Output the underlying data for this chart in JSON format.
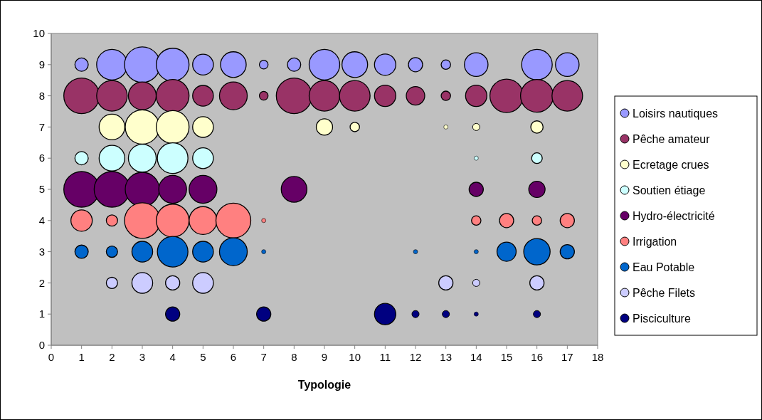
{
  "chart_data": {
    "type": "bubble",
    "xlabel": "Typologie",
    "xlim": [
      0,
      18
    ],
    "xticks": [
      0,
      1,
      2,
      3,
      4,
      5,
      6,
      7,
      8,
      9,
      10,
      11,
      12,
      13,
      14,
      15,
      16,
      17,
      18
    ],
    "ylim": [
      0,
      10
    ],
    "yticks": [
      0,
      1,
      2,
      3,
      4,
      5,
      6,
      7,
      8,
      9,
      10
    ],
    "grid": false,
    "legend": "right",
    "marker": "circle",
    "series": [
      {
        "name": "Loisirs nautiques",
        "color": "#9999ff",
        "x": [
          1,
          2,
          3,
          4,
          5,
          6,
          7,
          8,
          9,
          10,
          11,
          12,
          13,
          14,
          16,
          17
        ],
        "values": [
          9,
          9,
          9,
          9,
          9,
          9,
          9,
          9,
          9,
          9,
          9,
          9,
          9,
          9,
          9,
          9
        ],
        "sizes": [
          0.14,
          0.74,
          1,
          0.85,
          0.34,
          0.52,
          0.06,
          0.14,
          0.74,
          0.52,
          0.36,
          0.16,
          0.07,
          0.44,
          0.74,
          0.44
        ]
      },
      {
        "name": "Pêche amateur",
        "color": "#993366",
        "x": [
          1,
          2,
          3,
          4,
          5,
          6,
          7,
          8,
          9,
          10,
          11,
          12,
          13,
          14,
          15,
          16,
          17
        ],
        "values": [
          8,
          8,
          8,
          8,
          8,
          8,
          8,
          8,
          8,
          8,
          8,
          8,
          8,
          8,
          8,
          8,
          8
        ],
        "sizes": [
          1,
          0.74,
          0.61,
          0.85,
          0.34,
          0.61,
          0.06,
          1,
          0.74,
          0.74,
          0.36,
          0.27,
          0.07,
          0.36,
          0.88,
          0.85,
          0.74
        ]
      },
      {
        "name": "Ecretage crues",
        "color": "#ffffcc",
        "x": [
          2,
          3,
          4,
          5,
          9,
          10,
          13,
          14,
          16
        ],
        "values": [
          7,
          7,
          7,
          7,
          7,
          7,
          7,
          7,
          7
        ],
        "sizes": [
          0.52,
          0.92,
          0.85,
          0.34,
          0.21,
          0.07,
          0.014,
          0.04,
          0.12
        ]
      },
      {
        "name": "Soutien étiage",
        "color": "#ccffff",
        "x": [
          1,
          2,
          3,
          4,
          5,
          14,
          16
        ],
        "values": [
          6,
          6,
          6,
          6,
          6,
          6,
          6
        ],
        "sizes": [
          0.14,
          0.52,
          0.61,
          0.74,
          0.34,
          0.014,
          0.09
        ]
      },
      {
        "name": "Hydro-électricité",
        "color": "#660066",
        "x": [
          1,
          2,
          3,
          4,
          5,
          8,
          14,
          16
        ],
        "values": [
          5,
          5,
          5,
          5,
          5,
          5,
          5,
          5
        ],
        "sizes": [
          1,
          1,
          0.92,
          0.61,
          0.61,
          0.52,
          0.16,
          0.21
        ]
      },
      {
        "name": "Irrigation",
        "color": "#ff8080",
        "x": [
          1,
          2,
          3,
          4,
          5,
          6,
          7,
          14,
          15,
          16,
          17
        ],
        "values": [
          4,
          4,
          4,
          4,
          4,
          4,
          4,
          4,
          4,
          4,
          4
        ],
        "sizes": [
          0.36,
          0.1,
          1,
          0.85,
          0.61,
          0.96,
          0.014,
          0.07,
          0.16,
          0.07,
          0.16
        ]
      },
      {
        "name": "Eau Potable",
        "color": "#0066cc",
        "x": [
          1,
          2,
          3,
          4,
          5,
          6,
          7,
          12,
          14,
          15,
          16,
          17
        ],
        "values": [
          3,
          3,
          3,
          3,
          3,
          3,
          3,
          3,
          3,
          3,
          3,
          3
        ],
        "sizes": [
          0.14,
          0.1,
          0.34,
          0.74,
          0.34,
          0.61,
          0.014,
          0.014,
          0.014,
          0.29,
          0.55,
          0.16
        ]
      },
      {
        "name": "Pêche Filets",
        "color": "#ccccff",
        "x": [
          2,
          3,
          4,
          5,
          13,
          14,
          16
        ],
        "values": [
          2,
          2,
          2,
          2,
          2,
          2,
          2
        ],
        "sizes": [
          0.1,
          0.34,
          0.16,
          0.34,
          0.16,
          0.04,
          0.16
        ]
      },
      {
        "name": "Pisciculture",
        "color": "#000080",
        "x": [
          4,
          7,
          11,
          12,
          13,
          14,
          16
        ],
        "values": [
          1,
          1,
          1,
          1,
          1,
          1,
          1
        ],
        "sizes": [
          0.16,
          0.16,
          0.36,
          0.04,
          0.04,
          0.014,
          0.04
        ]
      }
    ]
  }
}
